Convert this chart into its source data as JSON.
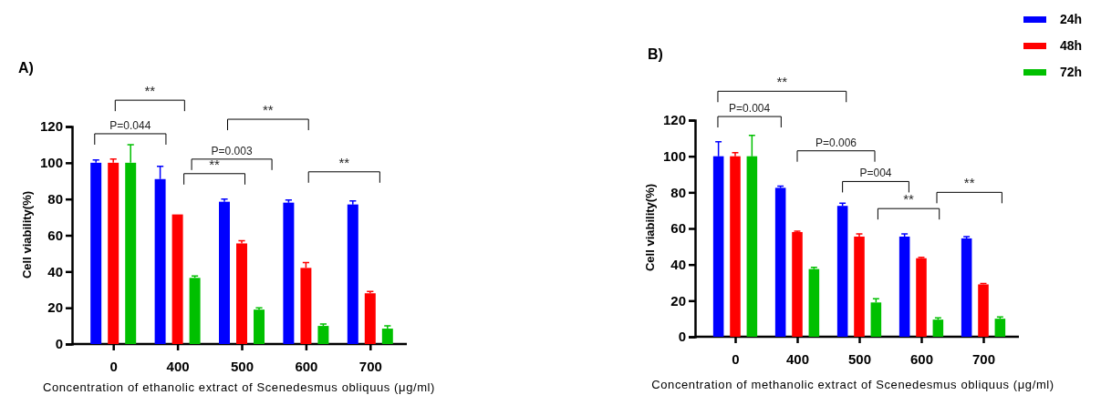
{
  "chart_data": [
    {
      "type": "bar",
      "title": "A)",
      "xlabel": "Concentration of ethanolic extract of Scenedesmus obliquus  (μg/ml)",
      "ylabel": "Cell viability(%)",
      "categories": [
        "0",
        "400",
        "500",
        "600",
        "700"
      ],
      "ylim": [
        0,
        120
      ],
      "yticks": [
        0,
        20,
        40,
        60,
        80,
        100,
        120
      ],
      "grid": false,
      "legend": false,
      "series": [
        {
          "color": "#0000ff",
          "values": [
            100,
            91,
            78.5,
            78,
            77
          ],
          "errors": [
            1.5,
            7,
            1.5,
            1.5,
            2
          ]
        },
        {
          "color": "#ff0000",
          "values": [
            100,
            71.5,
            55.5,
            42,
            28
          ],
          "errors": [
            2,
            null,
            1.5,
            3,
            1
          ]
        },
        {
          "color": "#00c000",
          "values": [
            100,
            36.5,
            19,
            10,
            8.5
          ],
          "errors": [
            10,
            1,
            1,
            1,
            1.5
          ]
        }
      ],
      "annotations": [
        "**",
        "P=0.044",
        "**",
        "P=0.003",
        "**",
        "**"
      ]
    },
    {
      "type": "bar",
      "title": "B)",
      "xlabel": "Concentration of methanolic extract of Scenedesmus obliquus  (μg/ml)",
      "ylabel": "Cell viability(%)",
      "categories": [
        "0",
        "400",
        "500",
        "600",
        "700"
      ],
      "ylim": [
        0,
        120
      ],
      "yticks": [
        0,
        20,
        40,
        60,
        80,
        100,
        120
      ],
      "grid": false,
      "legend": "top right",
      "series": [
        {
          "name": "24h",
          "color": "#0000ff",
          "values": [
            100,
            82.5,
            72.5,
            55.5,
            54.5
          ],
          "errors": [
            8,
            1,
            1.5,
            1.5,
            1
          ]
        },
        {
          "name": "48h",
          "color": "#ff0000",
          "values": [
            100,
            58,
            55.5,
            43.5,
            29
          ],
          "errors": [
            2,
            0.5,
            1.5,
            0.5,
            0.5
          ]
        },
        {
          "name": "72h",
          "color": "#00c000",
          "values": [
            100,
            37.5,
            19,
            9.5,
            10
          ],
          "errors": [
            11.5,
            1,
            2,
            1,
            1
          ]
        }
      ],
      "annotations": [
        "**",
        "P=0.004",
        "P=0.006",
        "P=004",
        "**",
        "**"
      ]
    }
  ]
}
